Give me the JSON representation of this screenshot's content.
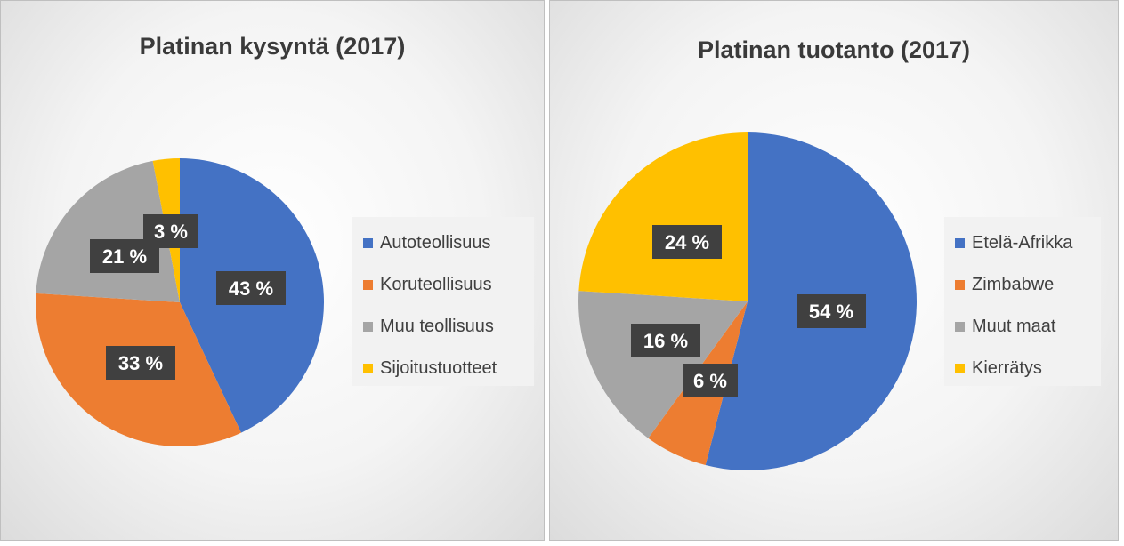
{
  "colors": {
    "blue": "#4472c4",
    "orange": "#ed7d31",
    "gray": "#a5a5a5",
    "yellow": "#ffc000",
    "label_bg": "#404040"
  },
  "chart_data": [
    {
      "type": "pie",
      "title": "Platinan kysyntä (2017)",
      "legend_position": "right",
      "categories": [
        "Autoteollisuus",
        "Koruteollisuus",
        "Muu teollisuus",
        "Sijoitustuotteet"
      ],
      "values": [
        43,
        33,
        21,
        3
      ],
      "labels": [
        "43 %",
        "33 %",
        "21 %",
        "3 %"
      ],
      "colors": [
        "#4472c4",
        "#ed7d31",
        "#a5a5a5",
        "#ffc000"
      ]
    },
    {
      "type": "pie",
      "title": "Platinan tuotanto (2017)",
      "legend_position": "right",
      "categories": [
        "Etelä-Afrikka",
        "Zimbabwe",
        "Muut maat",
        "Kierrätys"
      ],
      "values": [
        54,
        6,
        16,
        24
      ],
      "labels": [
        "54 %",
        "6 %",
        "16 %",
        "24 %"
      ],
      "colors": [
        "#4472c4",
        "#ed7d31",
        "#a5a5a5",
        "#ffc000"
      ]
    }
  ]
}
